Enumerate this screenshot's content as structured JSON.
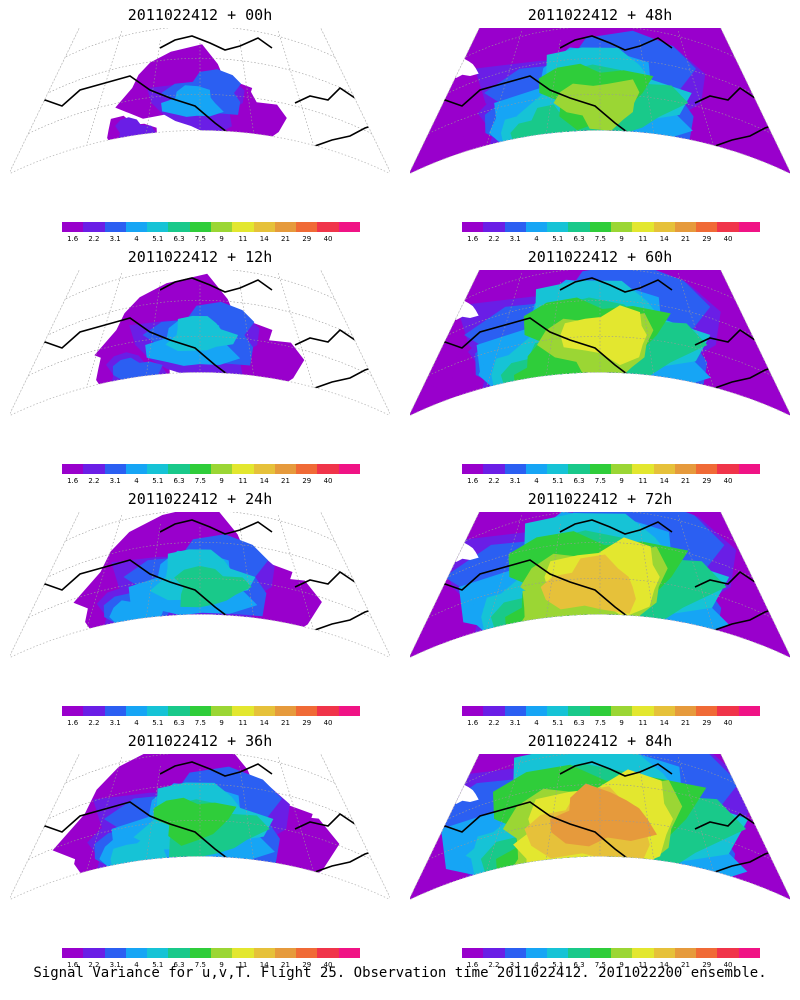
{
  "panels": [
    {
      "title": "2011022412 + 00h",
      "level": 0
    },
    {
      "title": "2011022412 + 48h",
      "level": 4
    },
    {
      "title": "2011022412 + 12h",
      "level": 1
    },
    {
      "title": "2011022412 + 60h",
      "level": 5
    },
    {
      "title": "2011022412 + 24h",
      "level": 2
    },
    {
      "title": "2011022412 + 72h",
      "level": 6
    },
    {
      "title": "2011022412 + 36h",
      "level": 3
    },
    {
      "title": "2011022412 + 84h",
      "level": 7
    }
  ],
  "legend": {
    "colors": [
      "#9900cc",
      "#6a1ee6",
      "#2b5ff2",
      "#16a5f5",
      "#16c3d6",
      "#19c98a",
      "#2fcd3a",
      "#9bd634",
      "#e3e72f",
      "#e6c13a",
      "#e69a3c",
      "#f06a36",
      "#f0344a",
      "#f01385"
    ],
    "labels": [
      "1.6",
      "2.2",
      "3.1",
      "4",
      "5.1",
      "6.3",
      "7.5",
      "9",
      "11",
      "14",
      "21",
      "29",
      "40"
    ]
  },
  "caption": "Signal Variance for u,v,T. Flight 25. Observation time 2011022412. 2011022200 ensemble."
}
